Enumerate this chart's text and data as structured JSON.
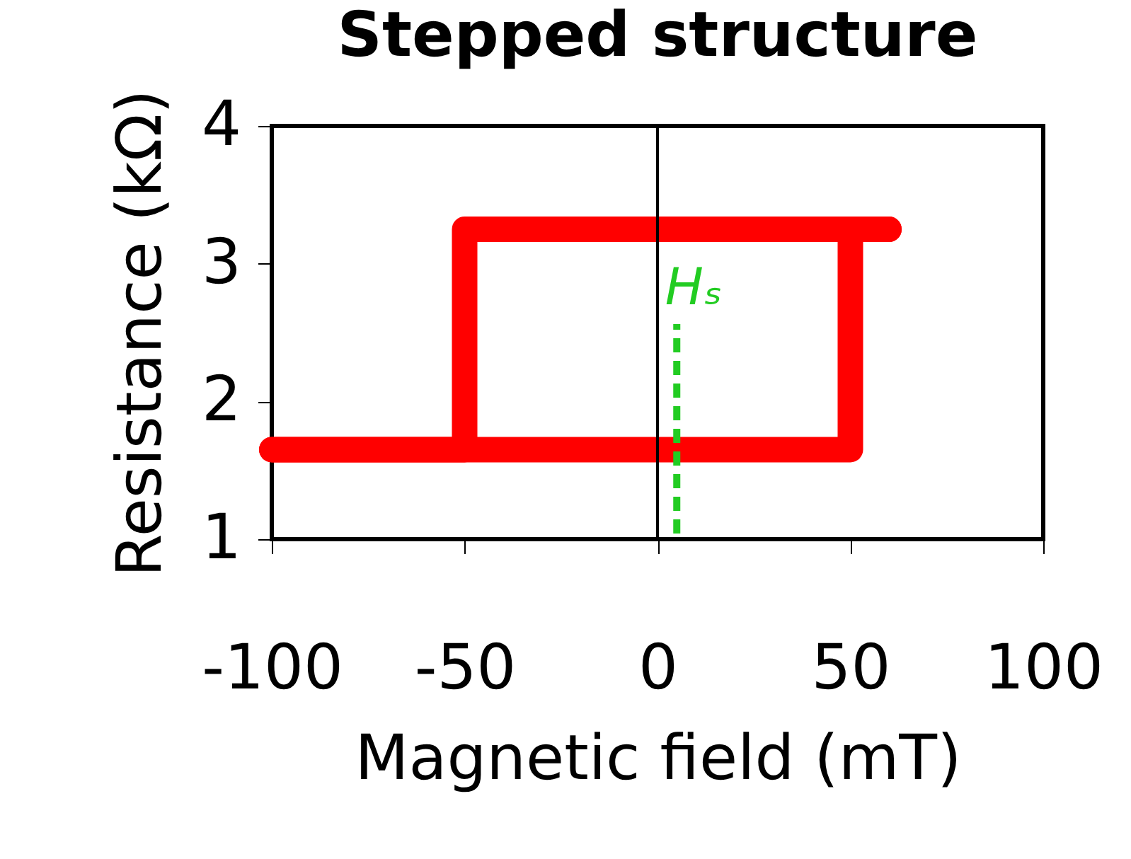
{
  "chart_data": {
    "type": "line",
    "title": "Stepped structure",
    "xlabel": "Magnetic field (mT)",
    "ylabel": "Resistance (kΩ)",
    "series": [
      {
        "color": "#ff0000",
        "x": [
          -100,
          50,
          50,
          60
        ],
        "values": [
          1.65,
          1.65,
          3.25,
          3.25
        ]
      },
      {
        "color": "#ff0000",
        "x": [
          60,
          -50,
          -50,
          -100
        ],
        "values": [
          3.25,
          3.25,
          1.65,
          1.65
        ]
      }
    ],
    "xlim": [
      -100,
      100
    ],
    "ylim": [
      1,
      4
    ],
    "xticks": [
      -100,
      -50,
      0,
      50,
      100
    ],
    "yticks": [
      1,
      2,
      3,
      4
    ],
    "ref_lines": [
      {
        "axis": "x",
        "value": 0,
        "color": "#000000",
        "line_style": "solid"
      },
      {
        "axis": "x",
        "value": 5,
        "label": "Hₛ",
        "color": "#22cc22",
        "line_style": "dashed"
      }
    ],
    "grid": false,
    "marker": "none",
    "line_style": "solid"
  }
}
